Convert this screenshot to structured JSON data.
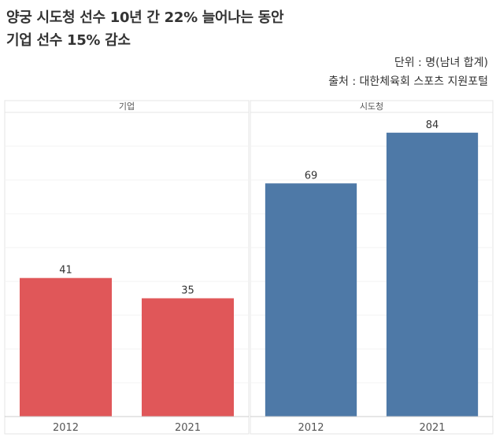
{
  "title": {
    "line1": "양궁 시도청 선수 10년 간 22% 늘어나는 동안",
    "line2": "기업 선수 15% 감소"
  },
  "meta": {
    "unit": "단위 : 명(남녀 합계)",
    "source": "출처 : 대한체육회 스포츠 지원포털"
  },
  "colors": {
    "series_기업": "#e05759",
    "series_시도청": "#4e79a7"
  },
  "chart_data": {
    "type": "bar",
    "grid": true,
    "ylim": [
      0,
      90
    ],
    "panels": [
      {
        "name": "기업",
        "categories": [
          "2012",
          "2021"
        ],
        "values": [
          41,
          35
        ]
      },
      {
        "name": "시도청",
        "categories": [
          "2012",
          "2021"
        ],
        "values": [
          69,
          84
        ]
      }
    ]
  }
}
